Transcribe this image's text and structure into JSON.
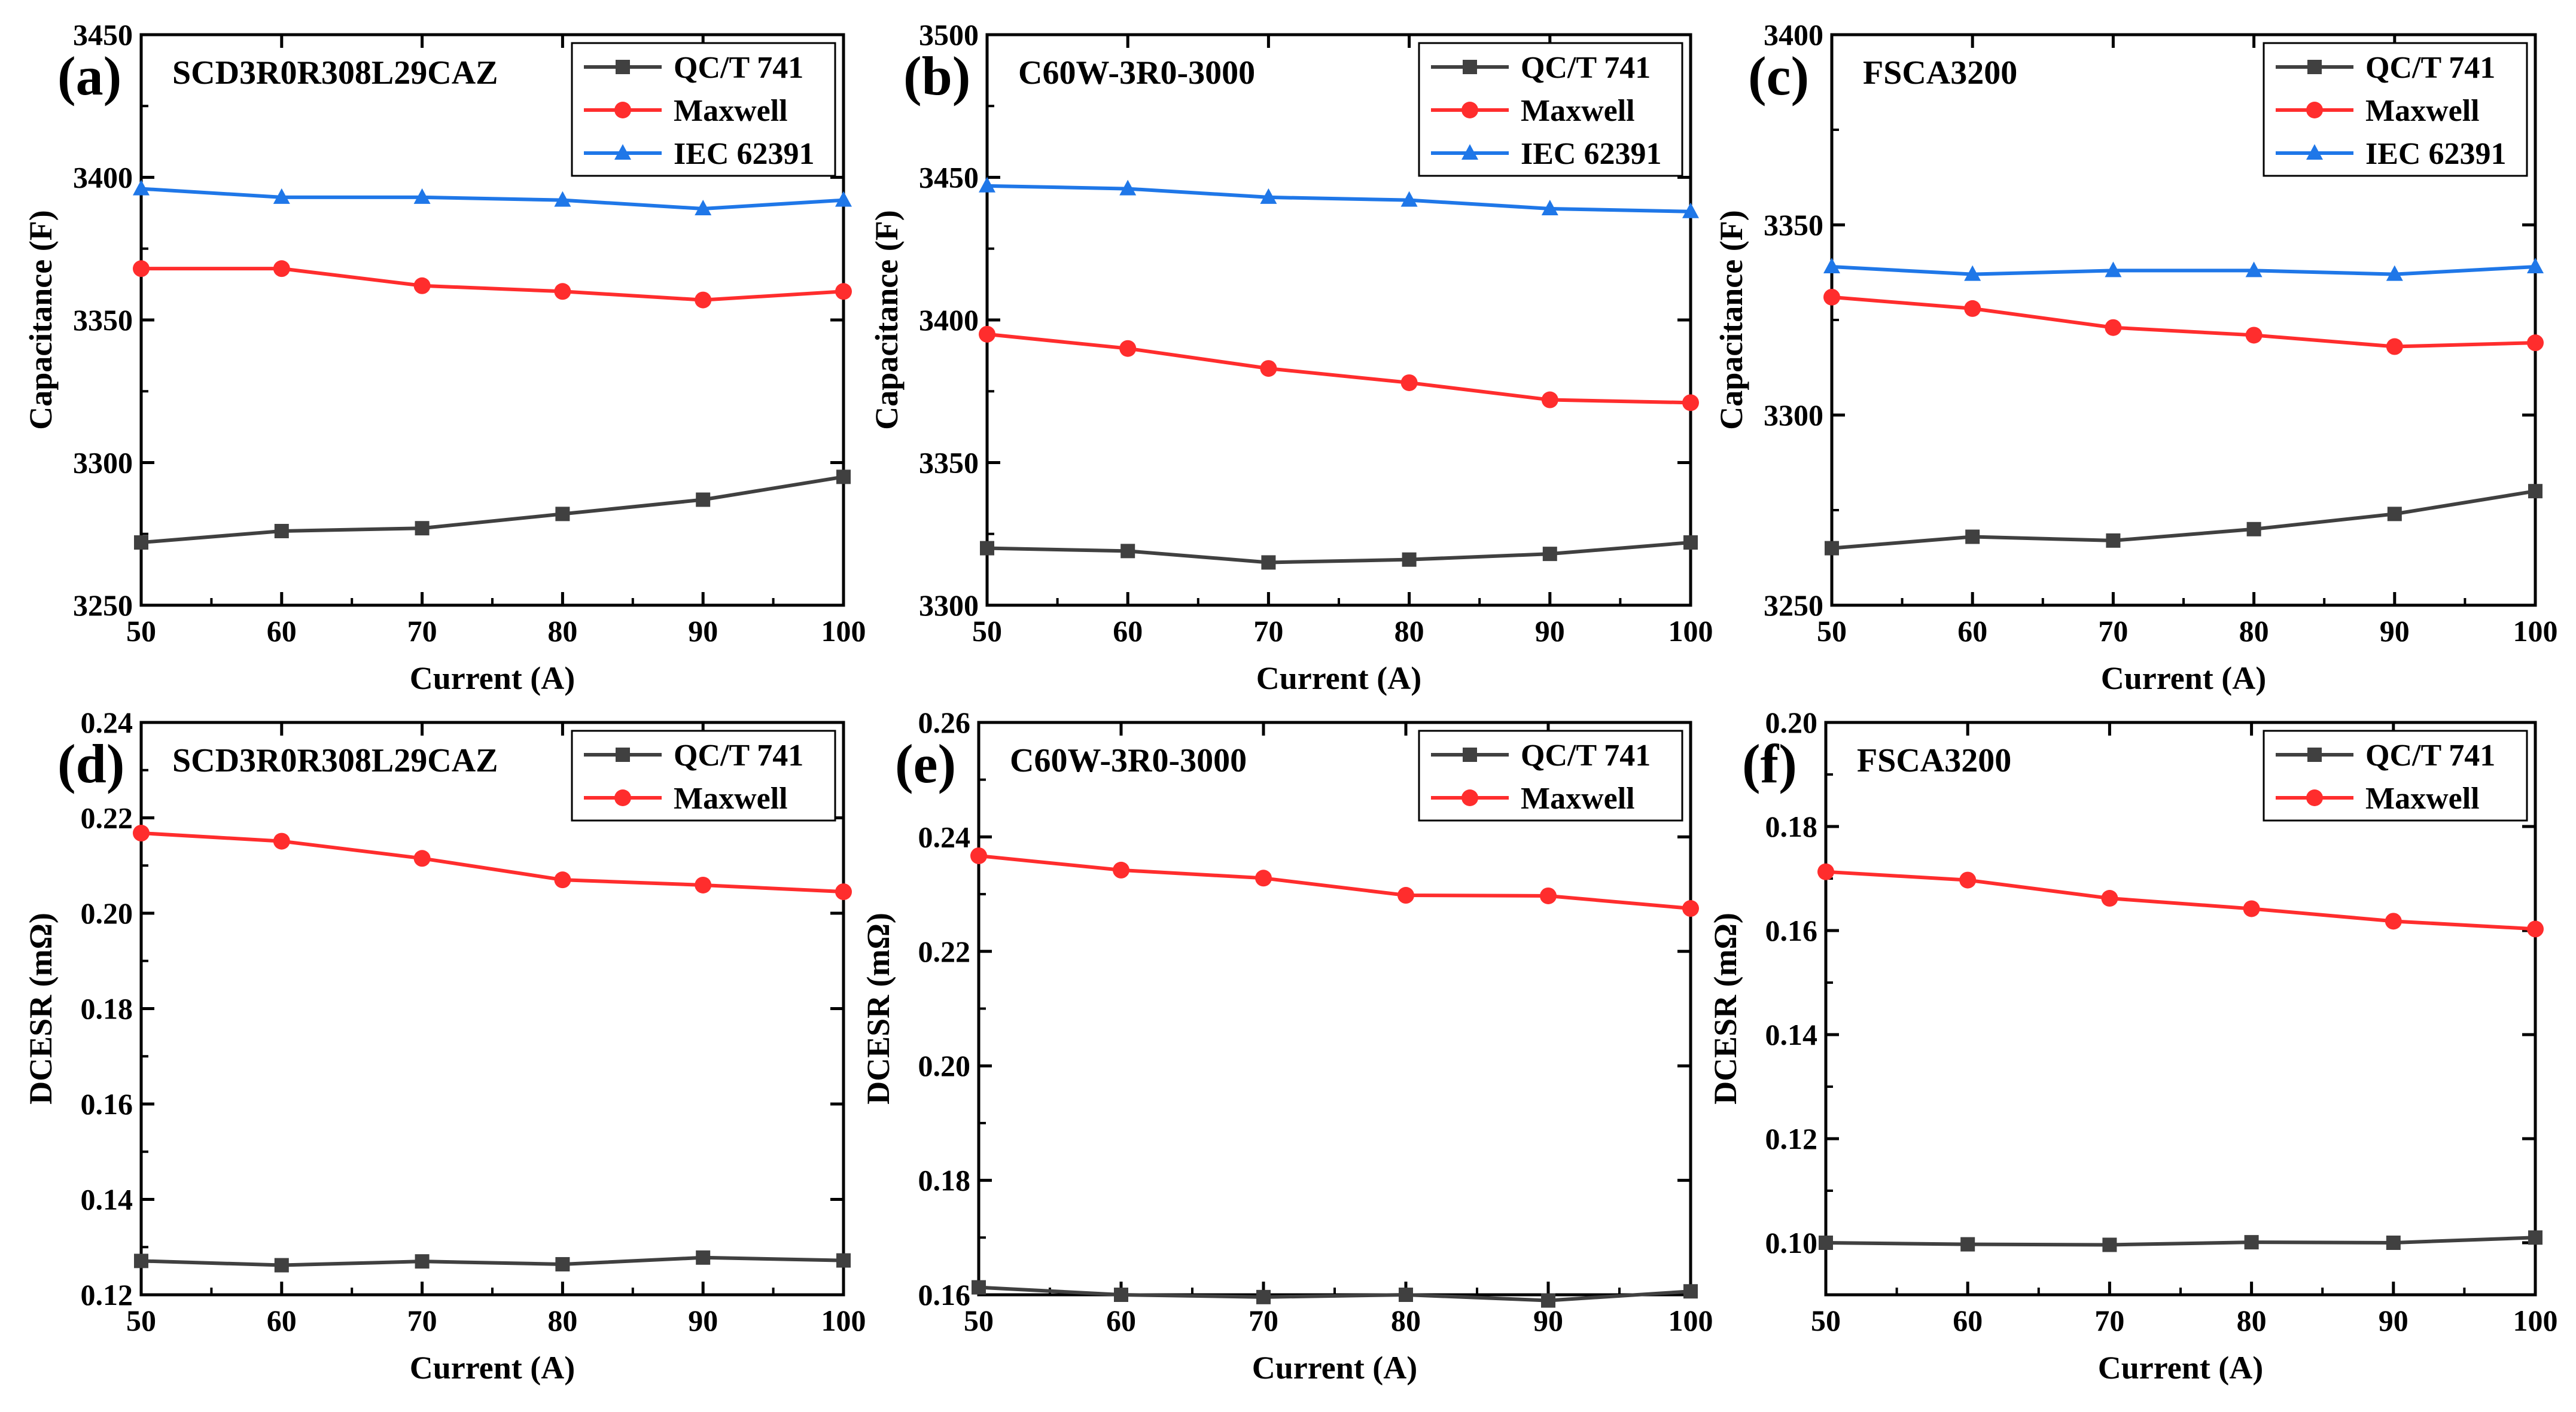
{
  "figure": {
    "colors": {
      "qct": "#404040",
      "maxwell": "#ff2d2d",
      "iec": "#1f77e8",
      "axis": "#000000",
      "background": "#ffffff"
    }
  },
  "chart_data": [
    {
      "type": "line",
      "panel": "(a)",
      "device": "SCD3R0R308L29CAZ",
      "xlabel": "Current (A)",
      "ylabel": "Capacitance (F)",
      "x": [
        50,
        60,
        70,
        80,
        90,
        100
      ],
      "xlim": [
        50,
        100
      ],
      "ylim": [
        3250,
        3450
      ],
      "xticks": [
        "50",
        "60",
        "70",
        "80",
        "90",
        "100"
      ],
      "yticks": [
        "3250",
        "3300",
        "3350",
        "3400",
        "3450"
      ],
      "legend_position": "top-right",
      "series": [
        {
          "name": "QC/T 741",
          "color": "#404040",
          "marker": "square",
          "values": [
            3272,
            3276,
            3277,
            3282,
            3287,
            3295
          ]
        },
        {
          "name": "Maxwell",
          "color": "#ff2d2d",
          "marker": "circle",
          "values": [
            3368,
            3368,
            3362,
            3360,
            3357,
            3360
          ]
        },
        {
          "name": "IEC 62391",
          "color": "#1f77e8",
          "marker": "triangle",
          "values": [
            3396,
            3393,
            3393,
            3392,
            3389,
            3392
          ]
        }
      ]
    },
    {
      "type": "line",
      "panel": "(b)",
      "device": "C60W-3R0-3000",
      "xlabel": "Current (A)",
      "ylabel": "Capacitance (F)",
      "x": [
        50,
        60,
        70,
        80,
        90,
        100
      ],
      "xlim": [
        50,
        100
      ],
      "ylim": [
        3300,
        3500
      ],
      "xticks": [
        "50",
        "60",
        "70",
        "80",
        "90",
        "100"
      ],
      "yticks": [
        "3300",
        "3350",
        "3400",
        "3450",
        "3500"
      ],
      "legend_position": "top-right",
      "series": [
        {
          "name": "QC/T 741",
          "color": "#404040",
          "marker": "square",
          "values": [
            3320,
            3319,
            3315,
            3316,
            3318,
            3322
          ]
        },
        {
          "name": "Maxwell",
          "color": "#ff2d2d",
          "marker": "circle",
          "values": [
            3395,
            3390,
            3383,
            3378,
            3372,
            3371
          ]
        },
        {
          "name": "IEC 62391",
          "color": "#1f77e8",
          "marker": "triangle",
          "values": [
            3447,
            3446,
            3443,
            3442,
            3439,
            3438
          ]
        }
      ]
    },
    {
      "type": "line",
      "panel": "(c)",
      "device": "FSCA3200",
      "xlabel": "Current (A)",
      "ylabel": "Capacitance (F)",
      "x": [
        50,
        60,
        70,
        80,
        90,
        100
      ],
      "xlim": [
        50,
        100
      ],
      "ylim": [
        3250,
        3400
      ],
      "xticks": [
        "50",
        "60",
        "70",
        "80",
        "90",
        "100"
      ],
      "yticks": [
        "3250",
        "3300",
        "3350",
        "3400"
      ],
      "legend_position": "top-right",
      "series": [
        {
          "name": "QC/T 741",
          "color": "#404040",
          "marker": "square",
          "values": [
            3265,
            3268,
            3267,
            3270,
            3274,
            3280
          ]
        },
        {
          "name": "Maxwell",
          "color": "#ff2d2d",
          "marker": "circle",
          "values": [
            3331,
            3328,
            3323,
            3321,
            3318,
            3319
          ]
        },
        {
          "name": "IEC 62391",
          "color": "#1f77e8",
          "marker": "triangle",
          "values": [
            3339,
            3337,
            3338,
            3338,
            3337,
            3339
          ]
        }
      ]
    },
    {
      "type": "line",
      "panel": "(d)",
      "device": "SCD3R0R308L29CAZ",
      "xlabel": "Current (A)",
      "ylabel": "DCESR (mΩ)",
      "x": [
        50,
        60,
        70,
        80,
        90,
        100
      ],
      "xlim": [
        50,
        100
      ],
      "ylim": [
        0.12,
        0.24
      ],
      "xticks": [
        "50",
        "60",
        "70",
        "80",
        "90",
        "100"
      ],
      "yticks": [
        "0.12",
        "0.14",
        "0.16",
        "0.18",
        "0.20",
        "0.22",
        "0.24"
      ],
      "legend_position": "top-right",
      "series": [
        {
          "name": "QC/T 741",
          "color": "#404040",
          "marker": "square",
          "values": [
            0.1271,
            0.1262,
            0.127,
            0.1264,
            0.1278,
            0.1272
          ]
        },
        {
          "name": "Maxwell",
          "color": "#ff2d2d",
          "marker": "circle",
          "values": [
            0.2168,
            0.2151,
            0.2115,
            0.207,
            0.2059,
            0.2045
          ]
        }
      ]
    },
    {
      "type": "line",
      "panel": "(e)",
      "device": "C60W-3R0-3000",
      "xlabel": "Current (A)",
      "ylabel": "DCESR (mΩ)",
      "x": [
        50,
        60,
        70,
        80,
        90,
        100
      ],
      "xlim": [
        50,
        100
      ],
      "ylim": [
        0.16,
        0.26
      ],
      "xticks": [
        "50",
        "60",
        "70",
        "80",
        "90",
        "100"
      ],
      "yticks": [
        "0.16",
        "0.18",
        "0.20",
        "0.22",
        "0.24",
        "0.26"
      ],
      "legend_position": "top-right",
      "series": [
        {
          "name": "QC/T 741",
          "color": "#404040",
          "marker": "square",
          "values": [
            0.1613,
            0.16,
            0.1596,
            0.16,
            0.159,
            0.1606
          ]
        },
        {
          "name": "Maxwell",
          "color": "#ff2d2d",
          "marker": "circle",
          "values": [
            0.2367,
            0.2342,
            0.2328,
            0.2298,
            0.2297,
            0.2275
          ]
        }
      ]
    },
    {
      "type": "line",
      "panel": "(f)",
      "device": "FSCA3200",
      "xlabel": "Current (A)",
      "ylabel": "DCESR (mΩ)",
      "x": [
        50,
        60,
        70,
        80,
        90,
        100
      ],
      "xlim": [
        50,
        100
      ],
      "ylim": [
        0.09,
        0.2
      ],
      "xticks": [
        "50",
        "60",
        "70",
        "80",
        "90",
        "100"
      ],
      "yticks": [
        "0.10",
        "0.12",
        "0.14",
        "0.16",
        "0.18",
        "0.20"
      ],
      "legend_position": "top-right",
      "series": [
        {
          "name": "QC/T 741",
          "color": "#404040",
          "marker": "square",
          "values": [
            0.1,
            0.0997,
            0.0996,
            0.1001,
            0.1,
            0.101
          ]
        },
        {
          "name": "Maxwell",
          "color": "#ff2d2d",
          "marker": "circle",
          "values": [
            0.1713,
            0.1697,
            0.1662,
            0.1642,
            0.1618,
            0.1603
          ]
        }
      ]
    }
  ]
}
